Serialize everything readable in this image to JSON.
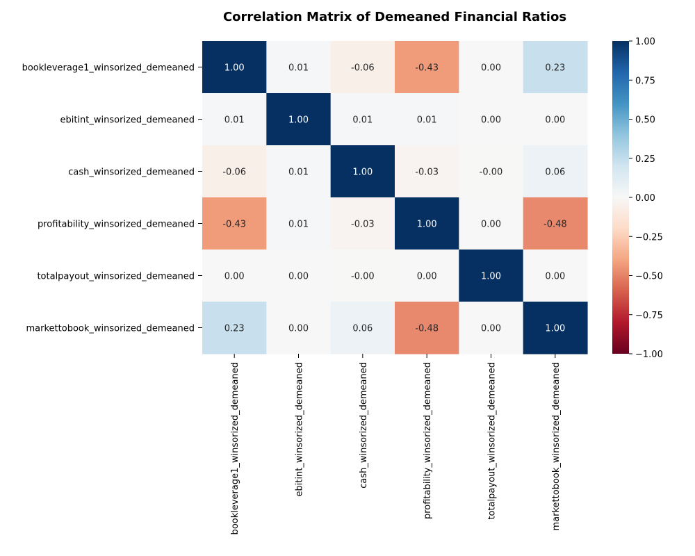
{
  "chart_data": {
    "type": "heatmap",
    "title": "Correlation Matrix of Demeaned Financial Ratios",
    "variables": [
      "bookleverage1_winsorized_demeaned",
      "ebitint_winsorized_demeaned",
      "cash_winsorized_demeaned",
      "profitability_winsorized_demeaned",
      "totalpayout_winsorized_demeaned",
      "markettobook_winsorized_demeaned"
    ],
    "cell_labels": [
      [
        "1.00",
        "0.01",
        "-0.06",
        "-0.43",
        "0.00",
        "0.23"
      ],
      [
        "0.01",
        "1.00",
        "0.01",
        "0.01",
        "0.00",
        "0.00"
      ],
      [
        "-0.06",
        "0.01",
        "1.00",
        "-0.03",
        "-0.00",
        "0.06"
      ],
      [
        "-0.43",
        "0.01",
        "-0.03",
        "1.00",
        "0.00",
        "-0.48"
      ],
      [
        "0.00",
        "0.00",
        "-0.00",
        "0.00",
        "1.00",
        "0.00"
      ],
      [
        "0.23",
        "0.00",
        "0.06",
        "-0.48",
        "0.00",
        "1.00"
      ]
    ],
    "values": [
      [
        1.0,
        0.01,
        -0.06,
        -0.43,
        0.0,
        0.23
      ],
      [
        0.01,
        1.0,
        0.01,
        0.01,
        0.0,
        0.0
      ],
      [
        -0.06,
        0.01,
        1.0,
        -0.03,
        -0.003,
        0.06
      ],
      [
        -0.43,
        0.01,
        -0.03,
        1.0,
        0.0,
        -0.48
      ],
      [
        0.0,
        0.0,
        -0.003,
        0.0,
        1.0,
        0.0
      ],
      [
        0.23,
        0.0,
        0.06,
        -0.48,
        0.0,
        1.0
      ]
    ],
    "colormap": "RdBu",
    "vmin": -1.0,
    "vmax": 1.0,
    "colorbar_ticks": [
      "1.00",
      "0.75",
      "0.50",
      "0.25",
      "0.00",
      "−0.25",
      "−0.50",
      "−0.75",
      "−1.00"
    ],
    "colorbar_values": [
      1.0,
      0.75,
      0.5,
      0.25,
      0.0,
      -0.25,
      -0.5,
      -0.75,
      -1.0
    ],
    "grid": false,
    "legend": "colorbar-right"
  }
}
